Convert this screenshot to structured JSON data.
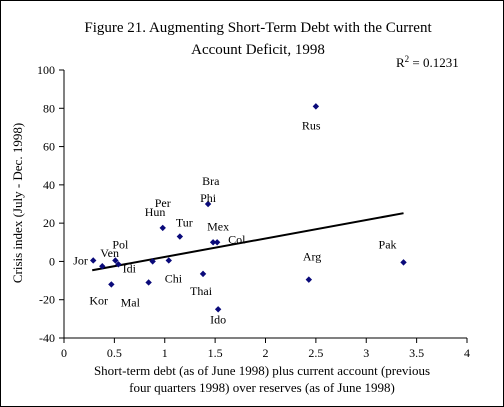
{
  "chart_data": {
    "type": "scatter",
    "title_lines": [
      "Figure 21. Augmenting Short-Term Debt with the Current",
      "Account Deficit, 1998"
    ],
    "xlabel_lines": [
      "Short-term debt (as of June 1998) plus current account (previous",
      "four quarters 1998) over reserves (as of June 1998)"
    ],
    "ylabel": "Crisis index (July - Dec. 1998)",
    "xlim": [
      0,
      4
    ],
    "ylim": [
      -40,
      100
    ],
    "xticks": [
      0,
      0.5,
      1,
      1.5,
      2,
      2.5,
      3,
      3.5,
      4
    ],
    "xtick_labels": [
      "0",
      "0.5",
      "1",
      "1.5",
      "2",
      "2.5",
      "3",
      "3.5",
      "4"
    ],
    "yticks": [
      -40,
      -20,
      0,
      20,
      40,
      60,
      80,
      100
    ],
    "ytick_labels": [
      "-40",
      "-20",
      "0",
      "20",
      "40",
      "60",
      "80",
      "100"
    ],
    "r2_label": "R",
    "r2_exponent": "2",
    "r2_value": " = 0.1231",
    "marker_color": "#0a0a7a",
    "trendline": {
      "x": [
        0.28,
        3.37
      ],
      "y": [
        -4.6,
        25.2
      ],
      "color": "#000000"
    },
    "points": [
      {
        "label": "Jor",
        "x": 0.29,
        "y": 0.5
      },
      {
        "label": "Ven",
        "x": 0.38,
        "y": -2.5
      },
      {
        "label": "Kor",
        "x": 0.47,
        "y": -12
      },
      {
        "label": "Pol",
        "x": 0.51,
        "y": 0.5
      },
      {
        "label": "",
        "x": 0.54,
        "y": -1.5
      },
      {
        "label": "Mal",
        "x": 0.84,
        "y": -11
      },
      {
        "label": "Idi",
        "x": 0.88,
        "y": 0
      },
      {
        "label": "Hun",
        "x": 0.98,
        "y": 17.5
      },
      {
        "label": "Per",
        "x": 0.98,
        "y": 17.5
      },
      {
        "label": "Chi",
        "x": 1.04,
        "y": 0.5
      },
      {
        "label": "Tur",
        "x": 1.15,
        "y": 13
      },
      {
        "label": "Thai",
        "x": 1.38,
        "y": -6.5
      },
      {
        "label": "Phi",
        "x": 1.43,
        "y": 30
      },
      {
        "label": "Bra",
        "x": 1.43,
        "y": 30
      },
      {
        "label": "Mex",
        "x": 1.48,
        "y": 10
      },
      {
        "label": "Col",
        "x": 1.52,
        "y": 10
      },
      {
        "label": "Ido",
        "x": 1.53,
        "y": -25
      },
      {
        "label": "Rus",
        "x": 2.5,
        "y": 81
      },
      {
        "label": "Arg",
        "x": 2.43,
        "y": -9.5
      },
      {
        "label": "Pak",
        "x": 3.37,
        "y": -0.5
      }
    ]
  }
}
